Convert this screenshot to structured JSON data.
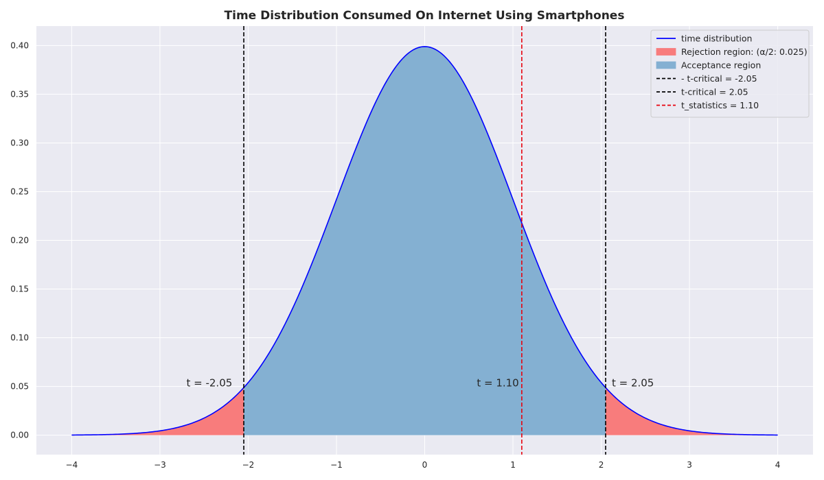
{
  "chart_data": {
    "type": "area",
    "title": "Time Distribution Consumed On Internet Using Smartphones",
    "xlabel": "",
    "ylabel": "",
    "xlim": [
      -4.4,
      4.4
    ],
    "ylim": [
      -0.02,
      0.42
    ],
    "x_ticks": [
      -4,
      -3,
      -2,
      -1,
      0,
      1,
      2,
      3,
      4
    ],
    "x_tick_labels": [
      "−4",
      "−3",
      "−2",
      "−1",
      "0",
      "1",
      "2",
      "3",
      "4"
    ],
    "y_ticks": [
      0.0,
      0.05,
      0.1,
      0.15,
      0.2,
      0.25,
      0.3,
      0.35,
      0.4
    ],
    "y_tick_labels": [
      "0.00",
      "0.05",
      "0.10",
      "0.15",
      "0.20",
      "0.25",
      "0.30",
      "0.35",
      "0.40"
    ],
    "grid": true,
    "legend_position": "top-right",
    "curve": {
      "name": "time distribution",
      "distribution": "standard normal pdf",
      "x_range": [
        -4,
        4
      ],
      "color": "#0000ff"
    },
    "regions": {
      "rejection": {
        "name": "Rejection region: (α/2: 0.025)",
        "color": "#f87c7c",
        "x_ranges": [
          [
            -4,
            -2.05
          ],
          [
            2.05,
            4
          ]
        ]
      },
      "acceptance": {
        "name": "Acceptance region",
        "color": "#84b0d2",
        "x_range": [
          -2.05,
          2.05
        ]
      }
    },
    "vlines": [
      {
        "name": "- t-critical = -2.05",
        "x": -2.05,
        "color": "#000000"
      },
      {
        "name": "t-critical = 2.05",
        "x": 2.05,
        "color": "#000000"
      },
      {
        "name": "t_statistics = 1.10",
        "x": 1.1,
        "color": "#e8000b"
      }
    ],
    "annotations": [
      {
        "text": "t = -2.05",
        "x": -2.7,
        "y": 0.05
      },
      {
        "text": "t = 1.10",
        "x": 0.59,
        "y": 0.05
      },
      {
        "text": "t = 2.05",
        "x": 2.12,
        "y": 0.05
      }
    ],
    "legend": [
      {
        "label": "time distribution",
        "kind": "line",
        "color": "#0000ff"
      },
      {
        "label": "Rejection region: (α/2: 0.025)",
        "kind": "patch",
        "color": "#f87c7c"
      },
      {
        "label": "Acceptance region",
        "kind": "patch",
        "color": "#84b0d2"
      },
      {
        "label": "- t-critical = -2.05",
        "kind": "dashed",
        "color": "#000000"
      },
      {
        "label": "t-critical = 2.05",
        "kind": "dashed",
        "color": "#000000"
      },
      {
        "label": "t_statistics = 1.10",
        "kind": "dashed",
        "color": "#e8000b"
      }
    ],
    "background_color": "#eaeaf2"
  }
}
